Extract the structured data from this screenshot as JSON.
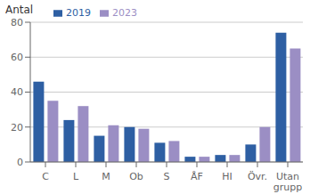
{
  "chart_data": {
    "type": "bar",
    "ylabel": "Antal",
    "categories": [
      "C",
      "L",
      "M",
      "Ob",
      "S",
      "ÅF",
      "HI",
      "Övr.",
      "Utan\ngrupp"
    ],
    "series": [
      {
        "name": "2019",
        "color": "#2e5fa3",
        "values": [
          46,
          24,
          15,
          20,
          11,
          3,
          4,
          10,
          74
        ]
      },
      {
        "name": "2023",
        "color": "#9b8ec4",
        "values": [
          35,
          32,
          21,
          19,
          12,
          3,
          4,
          20,
          65
        ]
      }
    ],
    "ylim": [
      0,
      80
    ],
    "yticks": [
      0,
      20,
      40,
      60,
      80
    ],
    "grid": true,
    "legend": "upper left"
  }
}
